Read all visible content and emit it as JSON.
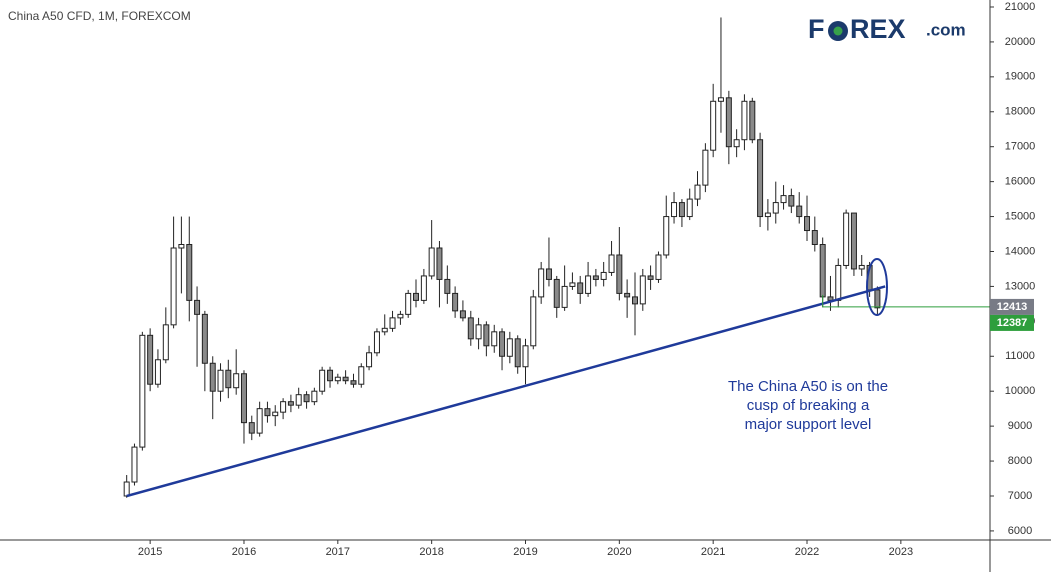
{
  "chart_data": {
    "type": "candlestick",
    "title": "China A50 CFD, 1M, FOREXCOM",
    "logo": [
      "F",
      "REX",
      ".com"
    ],
    "annotation": [
      "The China A50 is on the",
      "cusp of breaking a",
      "major support level"
    ],
    "x": [
      2014.75,
      2014.833,
      2014.917,
      2015.0,
      2015.083,
      2015.167,
      2015.25,
      2015.333,
      2015.417,
      2015.5,
      2015.583,
      2015.667,
      2015.75,
      2015.833,
      2015.917,
      2016.0,
      2016.083,
      2016.167,
      2016.25,
      2016.333,
      2016.417,
      2016.5,
      2016.583,
      2016.667,
      2016.75,
      2016.833,
      2016.917,
      2017.0,
      2017.083,
      2017.167,
      2017.25,
      2017.333,
      2017.417,
      2017.5,
      2017.583,
      2017.667,
      2017.75,
      2017.833,
      2017.917,
      2018.0,
      2018.083,
      2018.167,
      2018.25,
      2018.333,
      2018.417,
      2018.5,
      2018.583,
      2018.667,
      2018.75,
      2018.833,
      2018.917,
      2019.0,
      2019.083,
      2019.167,
      2019.25,
      2019.333,
      2019.417,
      2019.5,
      2019.583,
      2019.667,
      2019.75,
      2019.833,
      2019.917,
      2020.0,
      2020.083,
      2020.167,
      2020.25,
      2020.333,
      2020.417,
      2020.5,
      2020.583,
      2020.667,
      2020.75,
      2020.833,
      2020.917,
      2021.0,
      2021.083,
      2021.167,
      2021.25,
      2021.333,
      2021.417,
      2021.5,
      2021.583,
      2021.667,
      2021.75,
      2021.833,
      2021.917,
      2022.0,
      2022.083,
      2022.167,
      2022.25,
      2022.333,
      2022.417,
      2022.5,
      2022.583,
      2022.667,
      2022.75
    ],
    "open": [
      7000,
      7400,
      8400,
      11600,
      10200,
      10900,
      11900,
      14100,
      14200,
      12600,
      12200,
      10800,
      10000,
      10600,
      10100,
      10500,
      9100,
      8800,
      9500,
      9300,
      9400,
      9700,
      9600,
      9900,
      9700,
      10000,
      10600,
      10300,
      10400,
      10300,
      10200,
      10700,
      11100,
      11700,
      11800,
      12100,
      12200,
      12800,
      12600,
      13300,
      14100,
      13200,
      12800,
      12300,
      12100,
      11500,
      11900,
      11300,
      11700,
      11000,
      11500,
      10700,
      11300,
      12700,
      13500,
      13200,
      12400,
      13000,
      13100,
      12800,
      13300,
      13200,
      13400,
      13900,
      12800,
      12700,
      12500,
      13300,
      13200,
      13900,
      15000,
      15400,
      15000,
      15500,
      15900,
      16900,
      18300,
      18400,
      17000,
      17200,
      18300,
      17200,
      15000,
      15100,
      15400,
      15600,
      15300,
      15000,
      14600,
      14200,
      12700,
      12600,
      13600,
      15100,
      13500,
      13600,
      12900
    ],
    "high": [
      7600,
      8500,
      11700,
      11800,
      11200,
      12400,
      15000,
      15000,
      15000,
      13000,
      12300,
      11000,
      10800,
      10900,
      11200,
      10600,
      9300,
      9700,
      9700,
      9600,
      9800,
      9900,
      10100,
      10000,
      10100,
      10700,
      10700,
      10500,
      10600,
      10500,
      10800,
      11300,
      11800,
      12200,
      12300,
      12300,
      12900,
      13200,
      13500,
      14900,
      14300,
      13600,
      13000,
      12600,
      12300,
      12100,
      12000,
      11900,
      11800,
      11700,
      11600,
      11500,
      12900,
      13700,
      14400,
      13300,
      13600,
      13400,
      13300,
      13700,
      13500,
      13700,
      14300,
      14700,
      13200,
      13400,
      13500,
      13600,
      14000,
      15600,
      15700,
      15500,
      15800,
      16300,
      17100,
      18800,
      20700,
      18600,
      17500,
      18500,
      18400,
      17400,
      15500,
      16000,
      15900,
      15800,
      15700,
      15600,
      15000,
      14400,
      13300,
      13800,
      15200,
      15100,
      13900,
      13700,
      13000
    ],
    "low": [
      6950,
      7300,
      8300,
      10000,
      10100,
      10800,
      11800,
      12800,
      12000,
      10700,
      10000,
      9200,
      9700,
      9800,
      9900,
      8500,
      8600,
      8700,
      9100,
      9000,
      9200,
      9400,
      9500,
      9500,
      9600,
      9900,
      10100,
      10200,
      10200,
      10100,
      10100,
      10600,
      11000,
      11600,
      11700,
      11900,
      12100,
      12400,
      12500,
      13200,
      12400,
      12500,
      12100,
      12000,
      11300,
      11200,
      11000,
      11100,
      10600,
      10800,
      10500,
      10200,
      11200,
      12500,
      13000,
      12100,
      12300,
      12900,
      12500,
      12700,
      13000,
      13000,
      13300,
      12600,
      12100,
      11600,
      12300,
      12900,
      13100,
      13800,
      14800,
      14700,
      14900,
      15300,
      15700,
      16700,
      17400,
      16500,
      16700,
      16900,
      17100,
      14700,
      14600,
      14800,
      15200,
      15100,
      14800,
      14300,
      14000,
      12400,
      12300,
      12400,
      13500,
      13300,
      13300,
      12700,
      12200
    ],
    "close": [
      7400,
      8400,
      11600,
      10200,
      10900,
      11900,
      14100,
      14200,
      12600,
      12200,
      10800,
      10000,
      10600,
      10100,
      10500,
      9100,
      8800,
      9500,
      9300,
      9400,
      9700,
      9600,
      9900,
      9700,
      10000,
      10600,
      10300,
      10400,
      10300,
      10200,
      10700,
      11100,
      11700,
      11800,
      12100,
      12200,
      12800,
      12600,
      13300,
      14100,
      13200,
      12800,
      12300,
      12100,
      11500,
      11900,
      11300,
      11700,
      11000,
      11500,
      10700,
      11300,
      12700,
      13500,
      13200,
      12400,
      13000,
      13100,
      12800,
      13300,
      13200,
      13400,
      13900,
      12800,
      12700,
      12500,
      13300,
      13200,
      13900,
      15000,
      15400,
      15000,
      15500,
      15900,
      16900,
      18300,
      18400,
      17000,
      17200,
      18300,
      17200,
      15000,
      15100,
      15400,
      15600,
      15300,
      15000,
      14600,
      14200,
      12700,
      12600,
      13600,
      15100,
      13500,
      13600,
      12900,
      12387
    ],
    "up_color": "#ffffff",
    "down_color": "#8a8a8a",
    "xlim": [
      2013.4,
      2023.95
    ],
    "xticks": [
      2015,
      2016,
      2017,
      2018,
      2019,
      2020,
      2021,
      2022,
      2023
    ],
    "ylim": [
      5740,
      21200
    ],
    "yticks": [
      6000,
      7000,
      8000,
      9000,
      10000,
      11000,
      12000,
      13000,
      14000,
      15000,
      16000,
      17000,
      18000,
      19000,
      20000,
      21000
    ],
    "trendline": {
      "x": [
        2014.75,
        2022.833
      ],
      "y": [
        7000,
        13000
      ],
      "color": "#1f3a9a"
    },
    "support_line": {
      "x_start": 2022.167,
      "value": 12413,
      "color": "#2e9e3c"
    },
    "price_labels": [
      {
        "value": 12413,
        "color": "#787b86"
      },
      {
        "value": 12387,
        "color": "#2e9e3c"
      }
    ]
  }
}
